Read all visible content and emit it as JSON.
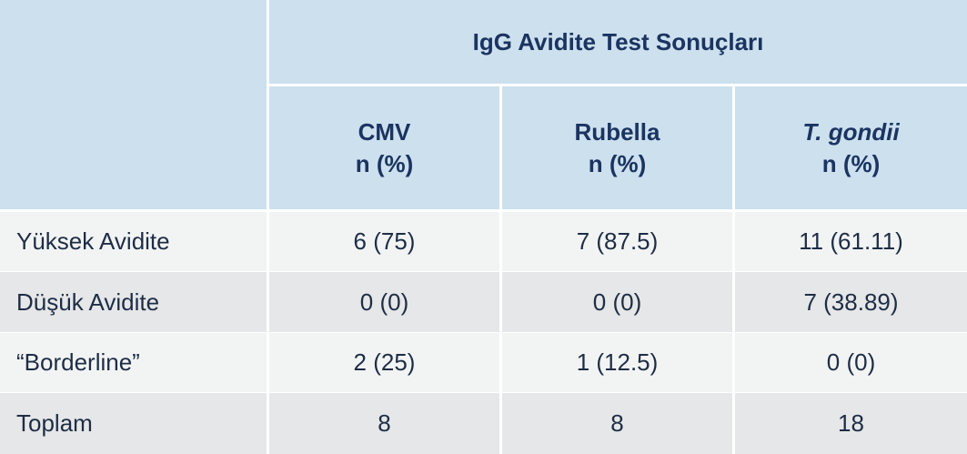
{
  "table": {
    "title": "IgG Avidite Test Sonuçları",
    "columns": [
      {
        "label": "CMV",
        "unit": "n (%)"
      },
      {
        "label": "Rubella",
        "unit": "n (%)"
      },
      {
        "label": "T. gondii",
        "unit": "n (%)"
      }
    ],
    "rows": [
      [
        "Yüksek Avidite",
        "6 (75)",
        "7 (87.5)",
        "11 (61.11)"
      ],
      [
        "Düşük Avidite",
        "0 (0)",
        "0 (0)",
        "7 (38.89)"
      ],
      [
        "“Borderline”",
        "2 (25)",
        "1 (12.5)",
        "0 (0)"
      ],
      [
        "Toplam",
        "8",
        "8",
        "18"
      ]
    ]
  }
}
